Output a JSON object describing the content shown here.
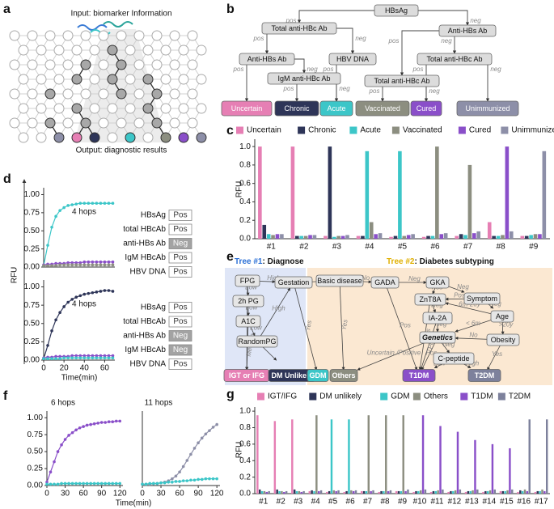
{
  "panel_labels": [
    "a",
    "b",
    "c",
    "d",
    "e",
    "f",
    "g"
  ],
  "panel_a": {
    "input": "Input: biomarker Information",
    "output": "Output: diagnostic results"
  },
  "panel_b": {
    "nodes": [
      "HBsAg",
      "Total anti-HBc Ab",
      "Anti-HBs Ab",
      "Anti-HBs Ab",
      "HBV DNA",
      "Total anti-HBc Ab",
      "IgM anti-HBc Ab",
      "Total anti-HBc Ab"
    ],
    "outcomes": [
      {
        "label": "Uncertain",
        "color": "#e67fb4"
      },
      {
        "label": "Chronic",
        "color": "#2e3558"
      },
      {
        "label": "Acute",
        "color": "#3cc6c8"
      },
      {
        "label": "Vaccinated",
        "color": "#8c8e80"
      },
      {
        "label": "Cured",
        "color": "#8a4fc9"
      },
      {
        "label": "Unimmunized",
        "color": "#8d8fa8"
      }
    ],
    "edge_labels": [
      "pos",
      "neg",
      "pos",
      "neg",
      "pos",
      "neg",
      "pos",
      "neg",
      "pos",
      "neg",
      "pos",
      "pos",
      "neg",
      "pos",
      "neg"
    ]
  },
  "panel_d": {
    "y_label": "RFU",
    "markers": [
      [
        {
          "name": "HBsAg",
          "result": "Pos",
          "fill": "#ffffff"
        },
        {
          "name": "total HBcAb",
          "result": "Pos",
          "fill": "#ffffff"
        },
        {
          "name": "anti-HBs Ab",
          "result": "Neg",
          "fill": "#a3a3a3"
        },
        {
          "name": "IgM HBcAb",
          "result": "Pos",
          "fill": "#ffffff"
        },
        {
          "name": "HBV DNA",
          "result": "Pos",
          "fill": "#ffffff"
        }
      ],
      [
        {
          "name": "HBsAg",
          "result": "Pos",
          "fill": "#ffffff"
        },
        {
          "name": "total HBcAb",
          "result": "Pos",
          "fill": "#ffffff"
        },
        {
          "name": "anti-HBs Ab",
          "result": "Neg",
          "fill": "#a3a3a3"
        },
        {
          "name": "IgM HBcAb",
          "result": "Neg",
          "fill": "#a3a3a3"
        },
        {
          "name": "HBV DNA",
          "result": "Pos",
          "fill": "#ffffff"
        }
      ]
    ]
  },
  "panel_e": {
    "tree1_tag": "Tree #1",
    "tree1_text": ": Diagnose",
    "tree2_tag": "Tree #2",
    "tree2_text": ": Diabetes subtyping",
    "nodes": [
      "FPG",
      "Gestation",
      "Basic disease",
      "GADA",
      "GKA",
      "Symptom",
      "ZnT8A",
      "IA-2A",
      "Age",
      "Genetics",
      "Obesity",
      "C-peptide",
      "2h PG",
      "A1C",
      "RandomPG"
    ],
    "outcomes": [
      {
        "label": "IGT or IFG",
        "color": "#e67fb4"
      },
      {
        "label": "DM Unlikely",
        "color": "#2e3558"
      },
      {
        "label": "GDM",
        "color": "#3cc6c8"
      },
      {
        "label": "Others",
        "color": "#8c8e80"
      },
      {
        "label": "T1DM",
        "color": "#8a4fc9"
      },
      {
        "label": "T2DM",
        "color": "#7d819c"
      }
    ],
    "edge_labels": [
      "High",
      "Low",
      "Low",
      "Low",
      "High",
      "Medium",
      "No",
      "Yes",
      "No",
      "Yes",
      "Neg",
      "Pos",
      "Neg",
      "Pos",
      "Neg",
      "Pos",
      "Neg",
      "Pos",
      "Neg",
      "Pos",
      "6m-20y",
      ">20y",
      "< 6m",
      "Neg",
      "Pos",
      "Uncertain /Positive",
      "Low",
      "High",
      "Yes",
      "No"
    ]
  },
  "panel_f": {
    "x_label": "Time(min)"
  },
  "chart_data": [
    {
      "type": "bar",
      "y_label": "RFU",
      "categories": [
        "#1",
        "#2",
        "#3",
        "#4",
        "#5",
        "#6",
        "#7",
        "#8",
        "#9"
      ],
      "series": [
        {
          "name": "Uncertain",
          "color": "#e67fb4",
          "values": [
            1.0,
            1.0,
            0.03,
            0.03,
            0.02,
            0.02,
            0.03,
            0.18,
            0.03
          ]
        },
        {
          "name": "Chronic",
          "color": "#2e3558",
          "values": [
            0.15,
            0.03,
            1.0,
            0.03,
            0.03,
            0.03,
            0.05,
            0.03,
            0.03
          ]
        },
        {
          "name": "Acute",
          "color": "#3cc6c8",
          "values": [
            0.05,
            0.03,
            0.02,
            0.95,
            0.95,
            0.03,
            0.04,
            0.03,
            0.04
          ]
        },
        {
          "name": "Vaccinated",
          "color": "#8c8e80",
          "values": [
            0.04,
            0.03,
            0.03,
            0.18,
            0.03,
            1.0,
            0.8,
            0.04,
            0.05
          ]
        },
        {
          "name": "Cured",
          "color": "#8a4fc9",
          "values": [
            0.05,
            0.04,
            0.03,
            0.05,
            0.04,
            0.05,
            0.06,
            1.0,
            0.05
          ]
        },
        {
          "name": "Unimmunized",
          "color": "#8d8fa8",
          "values": [
            0.05,
            0.04,
            0.04,
            0.06,
            0.05,
            0.06,
            0.08,
            0.08,
            0.95
          ]
        }
      ],
      "ylim": [
        0,
        1.08
      ],
      "yticks": [
        {
          "value": 0,
          "label": "0.0"
        },
        0.2,
        0.4,
        0.6,
        0.8,
        {
          "value": 1,
          "label": "1.0"
        }
      ]
    },
    {
      "type": "line",
      "annotation": "4 hops",
      "x": [
        0,
        4,
        8,
        12,
        16,
        20,
        24,
        28,
        32,
        36,
        40,
        44,
        48,
        52,
        56,
        60,
        64,
        68
      ],
      "series": [
        {
          "color": "#3cc6c8",
          "values": [
            0.02,
            0.3,
            0.55,
            0.7,
            0.78,
            0.82,
            0.85,
            0.86,
            0.87,
            0.88,
            0.88,
            0.88,
            0.88,
            0.88,
            0.88,
            0.88,
            0.88,
            0.88
          ]
        },
        {
          "color": "#8a4fc9",
          "values": [
            0.03,
            0.04,
            0.04,
            0.05,
            0.05,
            0.05,
            0.06,
            0.06,
            0.06,
            0.06,
            0.07,
            0.07,
            0.07,
            0.07,
            0.07,
            0.07,
            0.07,
            0.07
          ]
        },
        {
          "color": "#8c8e80",
          "values": [
            0.02,
            0.02,
            0.02,
            0.02,
            0.03,
            0.03,
            0.03,
            0.03,
            0.03,
            0.03,
            0.03,
            0.03,
            0.03,
            0.03,
            0.03,
            0.03,
            0.03,
            0.03
          ]
        }
      ],
      "xlim": [
        0,
        70
      ],
      "ylim": [
        0,
        1.05
      ],
      "yticks": [
        {
          "value": 0,
          "label": "0.00"
        },
        {
          "value": 0.25,
          "label": "0.25"
        },
        {
          "value": 0.5,
          "label": "0.50"
        },
        {
          "value": 0.75,
          "label": "0.75"
        },
        {
          "value": 1,
          "label": "1.00"
        }
      ]
    },
    {
      "type": "line",
      "annotation": "4 hops",
      "x_label": "Time(min)",
      "x": [
        0,
        4,
        8,
        12,
        16,
        20,
        24,
        28,
        32,
        36,
        40,
        44,
        48,
        52,
        56,
        60,
        64,
        68
      ],
      "series": [
        {
          "color": "#2e3558",
          "values": [
            0.02,
            0.2,
            0.4,
            0.55,
            0.65,
            0.73,
            0.79,
            0.83,
            0.86,
            0.88,
            0.9,
            0.91,
            0.92,
            0.93,
            0.94,
            0.95,
            0.95,
            0.94
          ]
        },
        {
          "color": "#8a4fc9",
          "values": [
            0.03,
            0.04,
            0.04,
            0.05,
            0.05,
            0.05,
            0.05,
            0.06,
            0.06,
            0.06,
            0.06,
            0.06,
            0.06,
            0.06,
            0.06,
            0.06,
            0.06,
            0.06
          ]
        },
        {
          "color": "#3cc6c8",
          "values": [
            0.02,
            0.02,
            0.02,
            0.02,
            0.02,
            0.03,
            0.03,
            0.03,
            0.03,
            0.03,
            0.03,
            0.03,
            0.03,
            0.03,
            0.03,
            0.03,
            0.03,
            0.03
          ]
        }
      ],
      "xlim": [
        0,
        70
      ],
      "ylim": [
        0,
        1.05
      ],
      "xticks": [
        0,
        20,
        40,
        60
      ],
      "yticks": [
        {
          "value": 0,
          "label": "0.00"
        },
        {
          "value": 0.25,
          "label": "0.25"
        },
        {
          "value": 0.5,
          "label": "0.50"
        },
        {
          "value": 0.75,
          "label": "0.75"
        },
        {
          "value": 1,
          "label": "1.00"
        }
      ]
    },
    {
      "type": "line",
      "title": "6 hops",
      "x": [
        0,
        6,
        12,
        18,
        24,
        30,
        36,
        42,
        48,
        54,
        60,
        66,
        72,
        78,
        84,
        90,
        96,
        102,
        108,
        114,
        120
      ],
      "series": [
        {
          "color": "#8a4fc9",
          "values": [
            0.05,
            0.2,
            0.35,
            0.5,
            0.6,
            0.68,
            0.74,
            0.78,
            0.82,
            0.85,
            0.87,
            0.89,
            0.9,
            0.91,
            0.92,
            0.93,
            0.93,
            0.94,
            0.94,
            0.95,
            0.95
          ]
        },
        {
          "color": "#3cc6c8",
          "values": [
            0.02,
            0.02,
            0.02,
            0.02,
            0.03,
            0.03,
            0.03,
            0.03,
            0.03,
            0.03,
            0.03,
            0.03,
            0.03,
            0.03,
            0.03,
            0.03,
            0.03,
            0.03,
            0.03,
            0.03,
            0.03
          ]
        }
      ],
      "xlim": [
        0,
        125
      ],
      "ylim": [
        0,
        1.05
      ],
      "xticks": [
        0,
        30,
        60,
        90,
        120
      ],
      "yticks": [
        {
          "value": 0,
          "label": "0.00"
        },
        {
          "value": 0.25,
          "label": "0.25"
        },
        {
          "value": 0.5,
          "label": "0.50"
        },
        {
          "value": 0.75,
          "label": "0.75"
        },
        {
          "value": 1,
          "label": "1.00"
        }
      ]
    },
    {
      "type": "line",
      "title": "11 hops",
      "x": [
        0,
        6,
        12,
        18,
        24,
        30,
        36,
        42,
        48,
        54,
        60,
        66,
        72,
        78,
        84,
        90,
        96,
        102,
        108,
        114,
        120
      ],
      "series": [
        {
          "color": "#8d8fa8",
          "values": [
            0.02,
            0.02,
            0.02,
            0.03,
            0.03,
            0.04,
            0.05,
            0.07,
            0.1,
            0.14,
            0.2,
            0.28,
            0.37,
            0.46,
            0.55,
            0.63,
            0.7,
            0.76,
            0.81,
            0.86,
            0.9
          ]
        },
        {
          "color": "#3cc6c8",
          "values": [
            0.02,
            0.02,
            0.03,
            0.03,
            0.03,
            0.04,
            0.04,
            0.05,
            0.05,
            0.06,
            0.06,
            0.07,
            0.07,
            0.08,
            0.08,
            0.09,
            0.09,
            0.1,
            0.1,
            0.1,
            0.1
          ]
        }
      ],
      "xlim": [
        0,
        125
      ],
      "ylim": [
        0,
        1.05
      ],
      "xticks": [
        0,
        30,
        60,
        90,
        120
      ]
    },
    {
      "type": "bar",
      "y_label": "RFU",
      "categories": [
        "#1",
        "#2",
        "#3",
        "#4",
        "#5",
        "#6",
        "#7",
        "#8",
        "#9",
        "#10",
        "#11",
        "#12",
        "#13",
        "#14",
        "#15",
        "#16",
        "#17"
      ],
      "series": [
        {
          "name": "IGT/IFG",
          "color": "#e67fb4",
          "values": [
            0.95,
            0.88,
            0.9,
            0.03,
            0.02,
            0.02,
            0.03,
            0.02,
            0.03,
            0.02,
            0.02,
            0.02,
            0.02,
            0.02,
            0.03,
            0.02,
            0.02
          ]
        },
        {
          "name": "DM unlikely",
          "color": "#2e3558",
          "values": [
            0.05,
            0.05,
            0.05,
            0.04,
            0.03,
            0.03,
            0.03,
            0.03,
            0.03,
            0.03,
            0.03,
            0.03,
            0.03,
            0.03,
            0.03,
            0.04,
            0.03
          ]
        },
        {
          "name": "GDM",
          "color": "#3cc6c8",
          "values": [
            0.03,
            0.03,
            0.03,
            0.03,
            0.9,
            0.9,
            0.03,
            0.03,
            0.03,
            0.03,
            0.03,
            0.03,
            0.03,
            0.03,
            0.03,
            0.03,
            0.03
          ]
        },
        {
          "name": "Others",
          "color": "#8c8e80",
          "values": [
            0.03,
            0.03,
            0.03,
            0.95,
            0.04,
            0.04,
            0.95,
            0.95,
            0.95,
            0.04,
            0.04,
            0.04,
            0.04,
            0.04,
            0.04,
            0.05,
            0.05
          ]
        },
        {
          "name": "T1DM",
          "color": "#8a4fc9",
          "values": [
            0.02,
            0.02,
            0.02,
            0.03,
            0.03,
            0.03,
            0.03,
            0.03,
            0.03,
            0.95,
            0.82,
            0.75,
            0.65,
            0.6,
            0.55,
            0.03,
            0.03
          ]
        },
        {
          "name": "T2DM",
          "color": "#7d819c",
          "values": [
            0.03,
            0.03,
            0.03,
            0.04,
            0.04,
            0.04,
            0.04,
            0.04,
            0.05,
            0.05,
            0.05,
            0.05,
            0.05,
            0.05,
            0.05,
            0.9,
            0.9
          ]
        }
      ],
      "ylim": [
        0,
        1.05
      ],
      "yticks": [
        {
          "value": 0,
          "label": "0.0"
        },
        0.2,
        0.4,
        0.6,
        0.8,
        {
          "value": 1,
          "label": "1.0"
        }
      ]
    }
  ]
}
